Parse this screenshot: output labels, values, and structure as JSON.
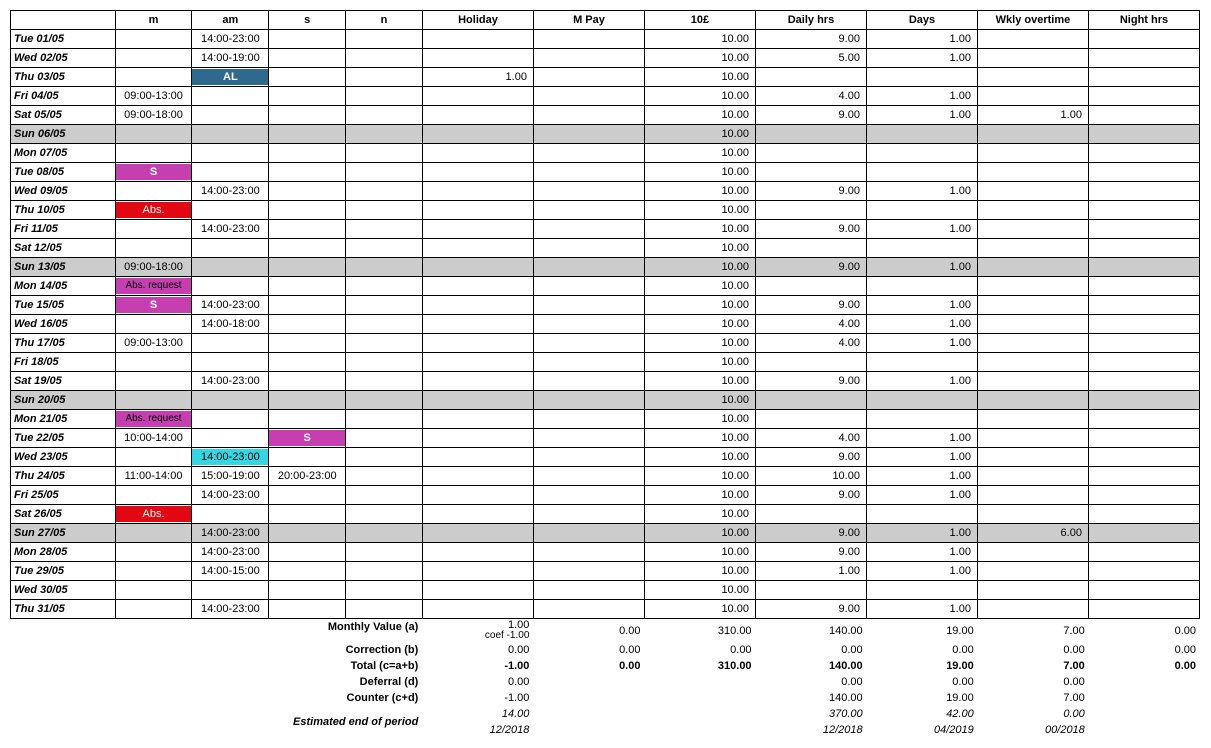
{
  "headers": {
    "date": "",
    "m": "m",
    "am": "am",
    "s": "s",
    "n": "n",
    "holiday": "Holiday",
    "mpay": "M Pay",
    "tenp": "10£",
    "daily": "Daily hrs",
    "days": "Days",
    "wkly": "Wkly overtime",
    "night": "Night hrs"
  },
  "rows": [
    {
      "date": "Tue 01/05",
      "m": "",
      "am": "14:00-23:00",
      "s": "",
      "n": "",
      "hol": "",
      "mpay": "",
      "tenp": "10.00",
      "daily": "9.00",
      "days": "1.00",
      "wkly": "",
      "night": "",
      "grey": false
    },
    {
      "date": "Wed 02/05",
      "m": "",
      "am": "14:00-19:00",
      "s": "",
      "n": "",
      "hol": "",
      "mpay": "",
      "tenp": "10.00",
      "daily": "5.00",
      "days": "1.00",
      "wkly": "",
      "night": "",
      "grey": false
    },
    {
      "date": "Thu 03/05",
      "m": "",
      "am": "",
      "am_tag": "AL",
      "am_tag_cls": "tag-al",
      "s": "",
      "n": "",
      "hol": "1.00",
      "mpay": "",
      "tenp": "10.00",
      "daily": "",
      "days": "",
      "wkly": "",
      "night": "",
      "grey": false
    },
    {
      "date": "Fri 04/05",
      "m": "09:00-13:00",
      "am": "",
      "s": "",
      "n": "",
      "hol": "",
      "mpay": "",
      "tenp": "10.00",
      "daily": "4.00",
      "days": "1.00",
      "wkly": "",
      "night": "",
      "grey": false
    },
    {
      "date": "Sat 05/05",
      "m": "09:00-18:00",
      "am": "",
      "s": "",
      "n": "",
      "hol": "",
      "mpay": "",
      "tenp": "10.00",
      "daily": "9.00",
      "days": "1.00",
      "wkly": "1.00",
      "night": "",
      "grey": false
    },
    {
      "date": "Sun 06/05",
      "m": "",
      "am": "",
      "s": "",
      "n": "",
      "hol": "",
      "mpay": "",
      "tenp": "10.00",
      "daily": "",
      "days": "",
      "wkly": "",
      "night": "",
      "grey": true
    },
    {
      "date": "Mon 07/05",
      "m": "",
      "am": "",
      "s": "",
      "n": "",
      "hol": "",
      "mpay": "",
      "tenp": "10.00",
      "daily": "",
      "days": "",
      "wkly": "",
      "night": "",
      "grey": false
    },
    {
      "date": "Tue 08/05",
      "m": "",
      "m_tag": "S",
      "m_tag_cls": "tag-s",
      "am": "",
      "s": "",
      "n": "",
      "hol": "",
      "mpay": "",
      "tenp": "10.00",
      "daily": "",
      "days": "",
      "wkly": "",
      "night": "",
      "grey": false
    },
    {
      "date": "Wed 09/05",
      "m": "",
      "am": "14:00-23:00",
      "s": "",
      "n": "",
      "hol": "",
      "mpay": "",
      "tenp": "10.00",
      "daily": "9.00",
      "days": "1.00",
      "wkly": "",
      "night": "",
      "grey": false
    },
    {
      "date": "Thu 10/05",
      "m": "",
      "m_tag": "Abs.",
      "m_tag_cls": "tag-abs",
      "am": "",
      "s": "",
      "n": "",
      "hol": "",
      "mpay": "",
      "tenp": "10.00",
      "daily": "",
      "days": "",
      "wkly": "",
      "night": "",
      "grey": false
    },
    {
      "date": "Fri 11/05",
      "m": "",
      "am": "14:00-23:00",
      "s": "",
      "n": "",
      "hol": "",
      "mpay": "",
      "tenp": "10.00",
      "daily": "9.00",
      "days": "1.00",
      "wkly": "",
      "night": "",
      "grey": false
    },
    {
      "date": "Sat 12/05",
      "m": "",
      "am": "",
      "s": "",
      "n": "",
      "hol": "",
      "mpay": "",
      "tenp": "10.00",
      "daily": "",
      "days": "",
      "wkly": "",
      "night": "",
      "grey": false
    },
    {
      "date": "Sun 13/05",
      "m": "09:00-18:00",
      "am": "",
      "s": "",
      "n": "",
      "hol": "",
      "mpay": "",
      "tenp": "10.00",
      "daily": "9.00",
      "days": "1.00",
      "wkly": "",
      "night": "",
      "grey": true
    },
    {
      "date": "Mon 14/05",
      "m": "",
      "m_tag": "Abs. request",
      "m_tag_cls": "tag-absreq",
      "am": "",
      "s": "",
      "n": "",
      "hol": "",
      "mpay": "",
      "tenp": "10.00",
      "daily": "",
      "days": "",
      "wkly": "",
      "night": "",
      "grey": false
    },
    {
      "date": "Tue 15/05",
      "m": "",
      "m_tag": "S",
      "m_tag_cls": "tag-s",
      "am": "14:00-23:00",
      "s": "",
      "n": "",
      "hol": "",
      "mpay": "",
      "tenp": "10.00",
      "daily": "9.00",
      "days": "1.00",
      "wkly": "",
      "night": "",
      "grey": false
    },
    {
      "date": "Wed 16/05",
      "m": "",
      "am": "14:00-18:00",
      "s": "",
      "n": "",
      "hol": "",
      "mpay": "",
      "tenp": "10.00",
      "daily": "4.00",
      "days": "1.00",
      "wkly": "",
      "night": "",
      "grey": false
    },
    {
      "date": "Thu 17/05",
      "m": "09:00-13:00",
      "am": "",
      "s": "",
      "n": "",
      "hol": "",
      "mpay": "",
      "tenp": "10.00",
      "daily": "4.00",
      "days": "1.00",
      "wkly": "",
      "night": "",
      "grey": false
    },
    {
      "date": "Fri 18/05",
      "m": "",
      "am": "",
      "s": "",
      "n": "",
      "hol": "",
      "mpay": "",
      "tenp": "10.00",
      "daily": "",
      "days": "",
      "wkly": "",
      "night": "",
      "grey": false
    },
    {
      "date": "Sat 19/05",
      "m": "",
      "am": "14:00-23:00",
      "s": "",
      "n": "",
      "hol": "",
      "mpay": "",
      "tenp": "10.00",
      "daily": "9.00",
      "days": "1.00",
      "wkly": "",
      "night": "",
      "grey": false
    },
    {
      "date": "Sun 20/05",
      "m": "",
      "am": "",
      "s": "",
      "n": "",
      "hol": "",
      "mpay": "",
      "tenp": "10.00",
      "daily": "",
      "days": "",
      "wkly": "",
      "night": "",
      "grey": true
    },
    {
      "date": "Mon 21/05",
      "m": "",
      "m_tag": "Abs. request",
      "m_tag_cls": "tag-absreq",
      "am": "",
      "s": "",
      "n": "",
      "hol": "",
      "mpay": "",
      "tenp": "10.00",
      "daily": "",
      "days": "",
      "wkly": "",
      "night": "",
      "grey": false
    },
    {
      "date": "Tue 22/05",
      "m": "10:00-14:00",
      "am": "",
      "s": "",
      "s_tag": "S",
      "s_tag_cls": "tag-s",
      "n": "",
      "hol": "",
      "mpay": "",
      "tenp": "10.00",
      "daily": "4.00",
      "days": "1.00",
      "wkly": "",
      "night": "",
      "grey": false
    },
    {
      "date": "Wed 23/05",
      "m": "",
      "am": "",
      "am_tag": "14:00-23:00",
      "am_tag_cls": "tag-cyan",
      "s": "",
      "n": "",
      "hol": "",
      "mpay": "",
      "tenp": "10.00",
      "daily": "9.00",
      "days": "1.00",
      "wkly": "",
      "night": "",
      "grey": false
    },
    {
      "date": "Thu 24/05",
      "m": "11:00-14:00",
      "am": "15:00-19:00",
      "s": "20:00-23:00",
      "n": "",
      "hol": "",
      "mpay": "",
      "tenp": "10.00",
      "daily": "10.00",
      "days": "1.00",
      "wkly": "",
      "night": "",
      "grey": false
    },
    {
      "date": "Fri 25/05",
      "m": "",
      "am": "14:00-23:00",
      "s": "",
      "n": "",
      "hol": "",
      "mpay": "",
      "tenp": "10.00",
      "daily": "9.00",
      "days": "1.00",
      "wkly": "",
      "night": "",
      "grey": false
    },
    {
      "date": "Sat 26/05",
      "m": "",
      "m_tag": "Abs.",
      "m_tag_cls": "tag-abs",
      "am": "",
      "s": "",
      "n": "",
      "hol": "",
      "mpay": "",
      "tenp": "10.00",
      "daily": "",
      "days": "",
      "wkly": "",
      "night": "",
      "grey": false
    },
    {
      "date": "Sun 27/05",
      "m": "",
      "am": "14:00-23:00",
      "s": "",
      "n": "",
      "hol": "",
      "mpay": "",
      "tenp": "10.00",
      "daily": "9.00",
      "days": "1.00",
      "wkly": "6.00",
      "night": "",
      "grey": true
    },
    {
      "date": "Mon 28/05",
      "m": "",
      "am": "14:00-23:00",
      "s": "",
      "n": "",
      "hol": "",
      "mpay": "",
      "tenp": "10.00",
      "daily": "9.00",
      "days": "1.00",
      "wkly": "",
      "night": "",
      "grey": false
    },
    {
      "date": "Tue 29/05",
      "m": "",
      "am": "14:00-15:00",
      "s": "",
      "n": "",
      "hol": "",
      "mpay": "",
      "tenp": "10.00",
      "daily": "1.00",
      "days": "1.00",
      "wkly": "",
      "night": "",
      "grey": false
    },
    {
      "date": "Wed 30/05",
      "m": "",
      "am": "",
      "s": "",
      "n": "",
      "hol": "",
      "mpay": "",
      "tenp": "10.00",
      "daily": "",
      "days": "",
      "wkly": "",
      "night": "",
      "grey": false
    },
    {
      "date": "Thu 31/05",
      "m": "",
      "am": "14:00-23:00",
      "s": "",
      "n": "",
      "hol": "",
      "mpay": "",
      "tenp": "10.00",
      "daily": "9.00",
      "days": "1.00",
      "wkly": "",
      "night": "",
      "grey": false
    }
  ],
  "summary": {
    "labels": {
      "monthly": "Monthly Value (a)",
      "coef": "coef -1.00",
      "correction": "Correction (b)",
      "total": "Total (c=a+b)",
      "deferral": "Deferral (d)",
      "counter": "Counter (c+d)",
      "eop": "Estimated end of period"
    },
    "monthly": {
      "hol": "1.00",
      "mpay": "0.00",
      "tenp": "310.00",
      "daily": "140.00",
      "days": "19.00",
      "wkly": "7.00",
      "night": "0.00"
    },
    "correction": {
      "hol": "0.00",
      "mpay": "0.00",
      "tenp": "0.00",
      "daily": "0.00",
      "days": "0.00",
      "wkly": "0.00",
      "night": "0.00"
    },
    "total": {
      "hol": "-1.00",
      "mpay": "0.00",
      "tenp": "310.00",
      "daily": "140.00",
      "days": "19.00",
      "wkly": "7.00",
      "night": "0.00"
    },
    "deferral": {
      "hol": "0.00",
      "mpay": "",
      "tenp": "",
      "daily": "0.00",
      "days": "0.00",
      "wkly": "0.00",
      "night": ""
    },
    "counter": {
      "hol": "-1.00",
      "mpay": "",
      "tenp": "",
      "daily": "140.00",
      "days": "19.00",
      "wkly": "7.00",
      "night": ""
    },
    "eop1": {
      "hol": "14.00",
      "mpay": "",
      "tenp": "",
      "daily": "370.00",
      "days": "42.00",
      "wkly": "0.00",
      "night": ""
    },
    "eop2": {
      "hol": "12/2018",
      "mpay": "",
      "tenp": "",
      "daily": "12/2018",
      "days": "04/2019",
      "wkly": "00/2018",
      "night": ""
    }
  },
  "style": {
    "grey_bg": "#cccccc",
    "tag_al": "#2d6a8e",
    "tag_s": "#c63fb0",
    "tag_abs": "#e30613",
    "tag_absreq": "#c63fb0",
    "tag_cyan": "#33d6e2"
  }
}
